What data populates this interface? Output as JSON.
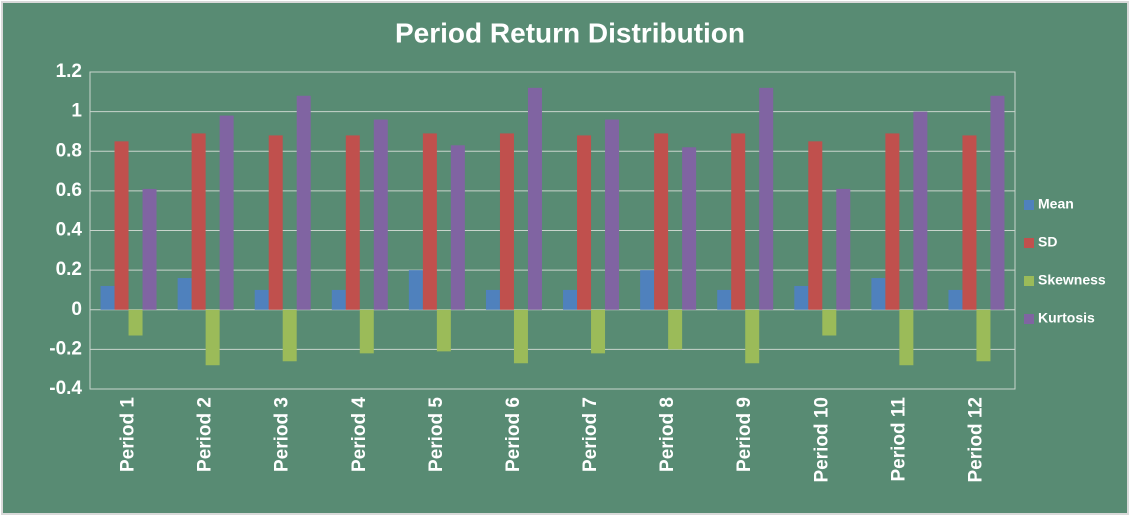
{
  "chart_data": {
    "type": "bar",
    "title": "Period Return Distribution",
    "categories": [
      "Period 1",
      "Period 2",
      "Period 3",
      "Period 4",
      "Period 5",
      "Period 6",
      "Period 7",
      "Period 8",
      "Period 9",
      "Period 10",
      "Period 11",
      "Period 12"
    ],
    "series": [
      {
        "name": "Mean",
        "color": "#4f81bd",
        "values": [
          0.12,
          0.16,
          0.1,
          0.1,
          0.2,
          0.1,
          0.1,
          0.2,
          0.1,
          0.12,
          0.16,
          0.1
        ]
      },
      {
        "name": "SD",
        "color": "#c0504d",
        "values": [
          0.85,
          0.89,
          0.88,
          0.88,
          0.89,
          0.89,
          0.88,
          0.89,
          0.89,
          0.85,
          0.89,
          0.88
        ]
      },
      {
        "name": "Skewness",
        "color": "#9bbb59",
        "values": [
          -0.13,
          -0.28,
          -0.26,
          -0.22,
          -0.21,
          -0.27,
          -0.22,
          -0.2,
          -0.27,
          -0.13,
          -0.28,
          -0.26
        ]
      },
      {
        "name": "Kurtosis",
        "color": "#8064a2",
        "values": [
          0.61,
          0.98,
          1.08,
          0.96,
          0.83,
          1.12,
          0.96,
          0.82,
          1.12,
          0.61,
          1.0,
          1.08
        ]
      }
    ],
    "ylim": [
      -0.4,
      1.2
    ],
    "yticks": [
      1.2,
      1,
      0.8,
      0.6,
      0.4,
      0.2,
      0,
      -0.2,
      -0.4
    ],
    "grid": true,
    "legend": "right"
  }
}
